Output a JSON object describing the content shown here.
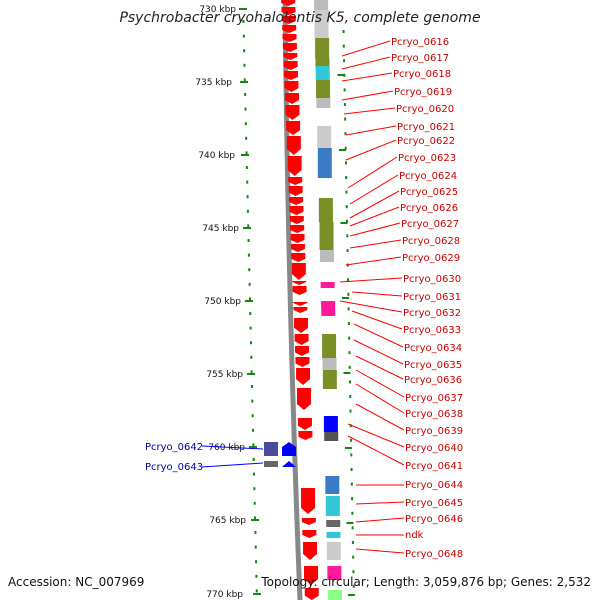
{
  "title": "Psychrobacter cryohalolentis K5, complete genome",
  "footer": {
    "accession": "Accession: NC_007969",
    "topology": "Topology: circular; Length: 3,059,876 bp; Genes: 2,532"
  },
  "colors": {
    "forward_gene": "#ff0000",
    "reverse_gene": "#0000ff",
    "right_label": "#cc0000",
    "left_label": "#0000aa",
    "tick": "#118811",
    "backbone": "#888888"
  },
  "scale": {
    "unit": "kbp",
    "ticks": [
      {
        "kbp": 730,
        "label": "730 kbp"
      },
      {
        "kbp": 735,
        "label": "735 kbp"
      },
      {
        "kbp": 740,
        "label": "740 kbp"
      },
      {
        "kbp": 745,
        "label": "745 kbp"
      },
      {
        "kbp": 750,
        "label": "750 kbp"
      },
      {
        "kbp": 755,
        "label": "755 kbp"
      },
      {
        "kbp": 760,
        "label": "760 kbp"
      },
      {
        "kbp": 765,
        "label": "765 kbp"
      },
      {
        "kbp": 770,
        "label": "770 kbp"
      }
    ]
  },
  "right_genes": [
    "Pcryo_0616",
    "Pcryo_0617",
    "Pcryo_0618",
    "Pcryo_0619",
    "Pcryo_0620",
    "Pcryo_0621",
    "Pcryo_0622",
    "Pcryo_0623",
    "Pcryo_0624",
    "Pcryo_0625",
    "Pcryo_0626",
    "Pcryo_0627",
    "Pcryo_0628",
    "Pcryo_0629",
    "Pcryo_0630",
    "Pcryo_0631",
    "Pcryo_0632",
    "Pcryo_0633",
    "Pcryo_0634",
    "Pcryo_0635",
    "Pcryo_0636",
    "Pcryo_0637",
    "Pcryo_0638",
    "Pcryo_0639",
    "Pcryo_0640",
    "Pcryo_0641",
    "Pcryo_0644",
    "Pcryo_0645",
    "Pcryo_0646",
    "ndk",
    "Pcryo_0648"
  ],
  "left_genes": [
    "Pcryo_0642",
    "Pcryo_0643"
  ]
}
